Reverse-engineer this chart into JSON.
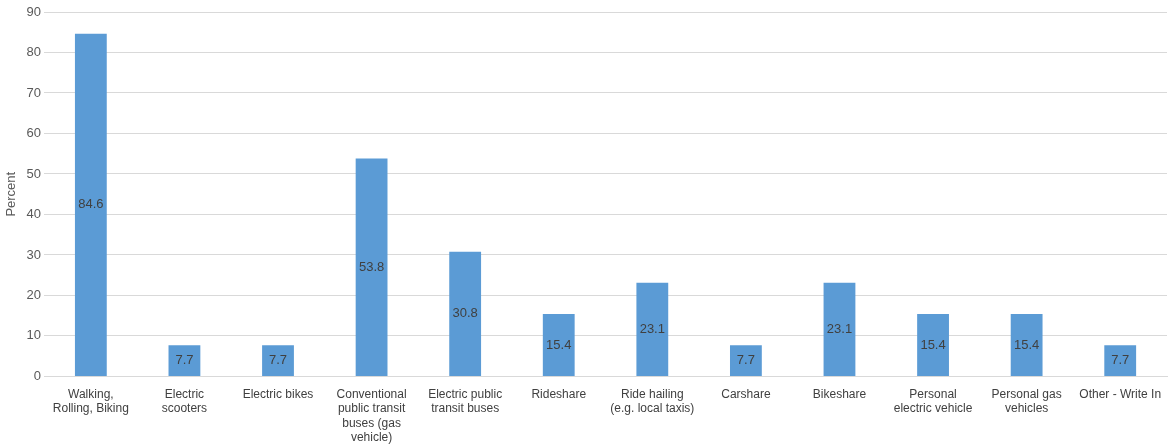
{
  "chart_data": {
    "type": "bar",
    "ylabel": "Percent",
    "categories": [
      "Walking, Rolling, Biking",
      "Electric scooters",
      "Electric bikes",
      "Conventional public transit buses (gas vehicle)",
      "Electric public transit buses",
      "Rideshare",
      "Ride hailing (e.g. local taxis)",
      "Carshare",
      "Bikeshare",
      "Personal electric vehicle",
      "Personal gas vehicles",
      "Other - Write In"
    ],
    "values": [
      84.6,
      7.7,
      7.7,
      53.8,
      30.8,
      15.4,
      23.1,
      7.7,
      23.1,
      15.4,
      15.4,
      7.7
    ],
    "color": "#5b9bd5",
    "ylim": [
      0,
      90
    ],
    "yticks": [
      0,
      10,
      20,
      30,
      40,
      50,
      60,
      70,
      80,
      90
    ],
    "grid": "y",
    "data_labels": true,
    "legend": false
  }
}
